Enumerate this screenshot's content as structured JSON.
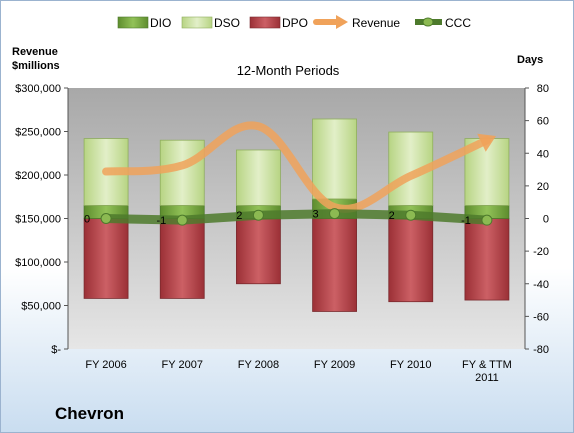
{
  "chart_data": {
    "type": "bar",
    "title": "12-Month Periods",
    "company": "Chevron",
    "left_axis": {
      "label_line1": "Revenue",
      "label_line2": "$millions",
      "range": [
        0,
        300000
      ],
      "ticks": [
        0,
        50000,
        100000,
        150000,
        200000,
        250000,
        300000
      ],
      "tick_labels": [
        "$-",
        "$50,000",
        "$100,000",
        "$150,000",
        "$200,000",
        "$250,000",
        "$300,000"
      ]
    },
    "right_axis": {
      "label": "Days",
      "range": [
        -80,
        80
      ],
      "ticks": [
        -80,
        -60,
        -40,
        -20,
        0,
        20,
        40,
        60,
        80
      ],
      "tick_labels": [
        "-80",
        "-60",
        "-40",
        "-20",
        "0",
        "20",
        "40",
        "60",
        "80"
      ]
    },
    "categories": [
      "FY 2006",
      "FY 2007",
      "FY 2008",
      "FY 2009",
      "FY 2010",
      "FY & TTM 2011"
    ],
    "legend": [
      "DIO",
      "DSO",
      "DPO",
      "Revenue",
      "CCC"
    ],
    "legend_position": "top",
    "colors": {
      "DIO": "#77a840",
      "DSO": "#cfe3a6",
      "DPO": "#b8484e",
      "Revenue": "#f0a25a",
      "CCC": "#4d7a2c",
      "plot_bg": "#c0c0c0"
    },
    "series": [
      {
        "name": "DIO",
        "axis": "right",
        "values": [
          8,
          8,
          8,
          12,
          8,
          8
        ]
      },
      {
        "name": "DSO",
        "axis": "right",
        "values": [
          41,
          40,
          34,
          49,
          45,
          41
        ]
      },
      {
        "name": "DPO",
        "axis": "right",
        "values": [
          -49,
          -49,
          -40,
          -57,
          -51,
          -50
        ]
      },
      {
        "name": "Revenue",
        "axis": "left",
        "values": [
          204000,
          211000,
          256000,
          163000,
          199000,
          240000
        ]
      },
      {
        "name": "CCC",
        "axis": "right",
        "values": [
          0,
          -1,
          2,
          3,
          2,
          -1
        ]
      }
    ],
    "ccc_labels": [
      "0",
      "-1",
      "2",
      "3",
      "2",
      "-1"
    ],
    "grid": false
  }
}
